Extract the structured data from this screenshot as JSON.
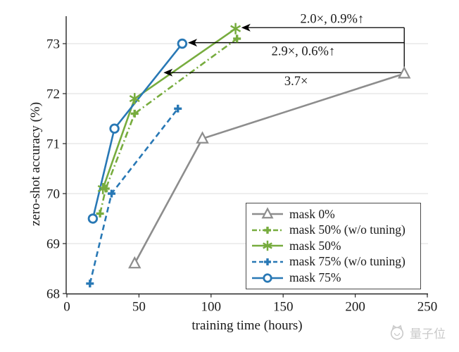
{
  "chart_data": {
    "type": "line",
    "title": "",
    "xlabel": "training time (hours)",
    "ylabel": "zero-shot accuracy (%)",
    "xlim": [
      0,
      252
    ],
    "ylim": [
      68,
      73.55
    ],
    "x_ticks": [
      0,
      50,
      100,
      150,
      200,
      250
    ],
    "y_ticks": [
      68,
      69,
      70,
      71,
      72,
      73
    ],
    "grid": "horizontal",
    "legend_position": "lower-right",
    "colors": {
      "gray": "#8D8D8D",
      "green": "#77AC3E",
      "blue": "#2878B5",
      "gridline": "#DEDEDE",
      "spine": "#262626",
      "text": "#1A1A1A",
      "annotation": "#000000",
      "watermark": "#C9C9C9"
    },
    "series": [
      {
        "name": "mask 0%",
        "color": "#8D8D8D",
        "line": "solid",
        "marker": "triangle-open",
        "points": [
          [
            47,
            68.6
          ],
          [
            94,
            71.1
          ],
          [
            234,
            72.4
          ]
        ]
      },
      {
        "name": "mask 50% (w/o tuning)",
        "color": "#77AC3E",
        "line": "dash-dot",
        "marker": "plus",
        "points": [
          [
            23,
            69.6
          ],
          [
            27,
            70.1
          ],
          [
            47,
            71.6
          ],
          [
            118,
            73.1
          ]
        ]
      },
      {
        "name": "mask 50%",
        "color": "#77AC3E",
        "line": "solid",
        "marker": "asterisk",
        "points": [
          [
            25,
            70.1
          ],
          [
            47,
            71.9
          ],
          [
            117,
            73.3
          ]
        ]
      },
      {
        "name": "mask 75% (w/o tuning)",
        "color": "#2878B5",
        "line": "dashed",
        "marker": "plus",
        "points": [
          [
            16,
            68.2
          ],
          [
            31,
            70.0
          ],
          [
            77,
            71.7
          ]
        ]
      },
      {
        "name": "mask 75%",
        "color": "#2878B5",
        "line": "solid",
        "marker": "circle-open",
        "points": [
          [
            18,
            69.5
          ],
          [
            33,
            71.3
          ],
          [
            80,
            73.0
          ]
        ]
      }
    ],
    "annotations": {
      "arrows": [
        {
          "text": "2.0×, 0.9%↑",
          "y": 73.32,
          "x_tip": 121,
          "x_end": 234,
          "label_x": 184,
          "label_side": "above"
        },
        {
          "text": "2.9×, 0.6%↑",
          "y": 73.02,
          "x_tip": 84,
          "x_end": 234,
          "label_x": 164,
          "label_side": "below"
        },
        {
          "text": "3.7×",
          "y": 72.42,
          "x_tip": 67,
          "x_end": 234,
          "label_x": 159,
          "label_side": "below"
        }
      ],
      "connector": {
        "x": 234,
        "y_top": 73.32,
        "y_bottom": 72.42
      }
    }
  },
  "watermark": {
    "text": "量子位"
  }
}
